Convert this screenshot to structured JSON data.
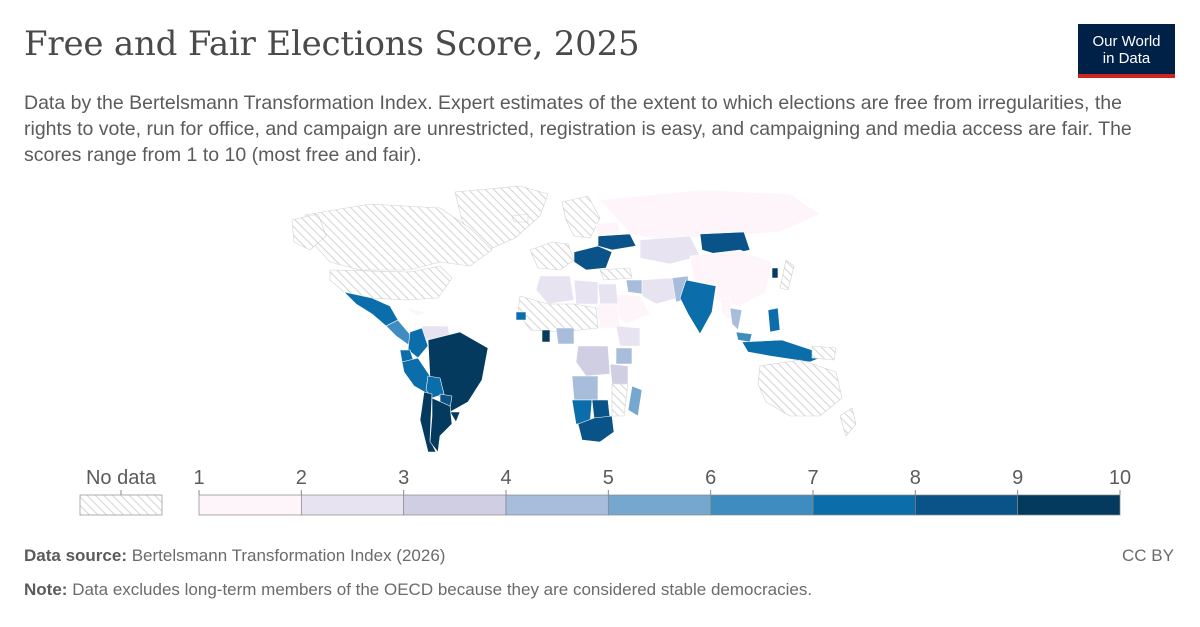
{
  "header": {
    "title": "Free and Fair Elections Score, 2025",
    "subtitle": "Data by the Bertelsmann Transformation Index. Expert estimates of the extent to which elections are free from irregularities, the rights to vote, run for office, and campaign are unrestricted, registration is easy, and campaigning and media access are fair. The scores range from 1 to 10 (most free and fair).",
    "logo_line1": "Our World",
    "logo_line2": "in Data"
  },
  "legend": {
    "no_data_label": "No data",
    "ticks": [
      "1",
      "2",
      "3",
      "4",
      "5",
      "6",
      "7",
      "8",
      "9",
      "10"
    ],
    "colors": [
      "#fdf5fa",
      "#e8e3f0",
      "#cfcee3",
      "#a8bddb",
      "#76a8cf",
      "#3f8dc0",
      "#0b6eaa",
      "#0a5388",
      "#043a5e"
    ]
  },
  "footer": {
    "source_label": "Data source:",
    "source_text": "Bertelsmann Transformation Index (2026)",
    "note_label": "Note:",
    "note_text": "Data excludes long-term members of the OECD because they are considered stable democracies.",
    "license": "CC BY"
  },
  "map_data": {
    "regions": [
      {
        "name": "Brazil",
        "score": 9.5
      },
      {
        "name": "Argentina",
        "score": 9
      },
      {
        "name": "Uruguay",
        "score": 9.5
      },
      {
        "name": "Chile",
        "score": 9
      },
      {
        "name": "Peru",
        "score": 7.5
      },
      {
        "name": "Bolivia",
        "score": 7
      },
      {
        "name": "Ecuador",
        "score": 7
      },
      {
        "name": "Colombia",
        "score": 7
      },
      {
        "name": "Paraguay",
        "score": 8
      },
      {
        "name": "Venezuela",
        "score": 2
      },
      {
        "name": "Mexico",
        "score": 7
      },
      {
        "name": "Central America",
        "score": 6
      },
      {
        "name": "Cuba",
        "score": 1
      },
      {
        "name": "South Africa",
        "score": 8.5
      },
      {
        "name": "Botswana",
        "score": 8.5
      },
      {
        "name": "Namibia",
        "score": 7
      },
      {
        "name": "Angola",
        "score": 4
      },
      {
        "name": "DR Congo",
        "score": 3
      },
      {
        "name": "Ghana",
        "score": 9.5
      },
      {
        "name": "Senegal",
        "score": 7
      },
      {
        "name": "Kenya",
        "score": 4
      },
      {
        "name": "Tanzania",
        "score": 3
      },
      {
        "name": "Ethiopia",
        "score": 2
      },
      {
        "name": "Nigeria",
        "score": 4
      },
      {
        "name": "Algeria",
        "score": 2
      },
      {
        "name": "Libya",
        "score": 2
      },
      {
        "name": "Egypt",
        "score": 2
      },
      {
        "name": "Sudan",
        "score": 1
      },
      {
        "name": "Madagascar",
        "score": 5
      },
      {
        "name": "Mongolia",
        "score": 8
      },
      {
        "name": "China",
        "score": 1
      },
      {
        "name": "Russia",
        "score": 1
      },
      {
        "name": "Kazakhstan",
        "score": 2
      },
      {
        "name": "India",
        "score": 7
      },
      {
        "name": "Pakistan",
        "score": 4
      },
      {
        "name": "Iran",
        "score": 2
      },
      {
        "name": "Saudi Arabia",
        "score": 1
      },
      {
        "name": "Iraq",
        "score": 4
      },
      {
        "name": "Ukraine",
        "score": 8
      },
      {
        "name": "Belarus",
        "score": 1
      },
      {
        "name": "Balkans",
        "score": 8
      },
      {
        "name": "Philippines",
        "score": 7
      },
      {
        "name": "Indonesia",
        "score": 7
      },
      {
        "name": "Malaysia",
        "score": 6
      },
      {
        "name": "South Korea",
        "score": 9
      },
      {
        "name": "Myanmar",
        "score": 1
      },
      {
        "name": "Thailand",
        "score": 4
      }
    ]
  }
}
